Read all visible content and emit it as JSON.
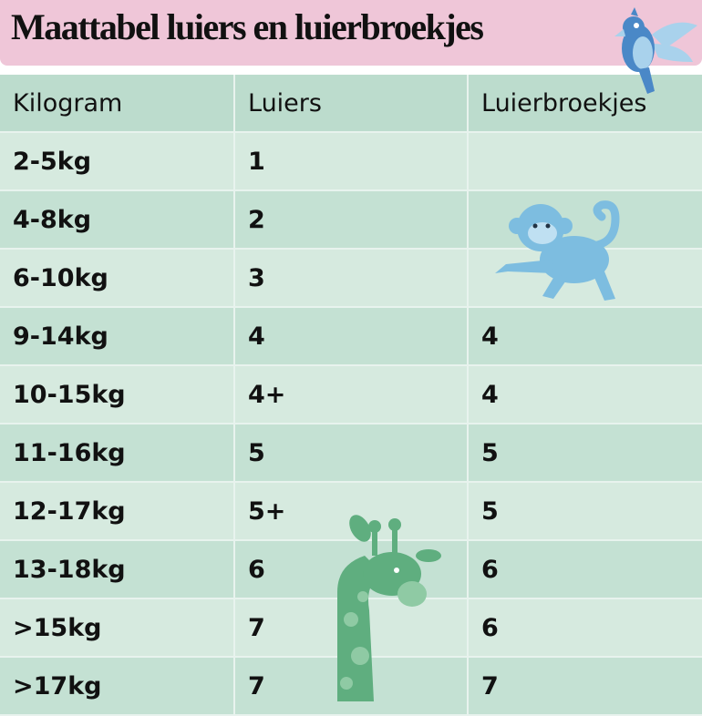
{
  "title": "Maattabel luiers en luierbroekjes",
  "headers": [
    "Kilogram",
    "Luiers",
    "Luierbroekjes"
  ],
  "rows": [
    [
      "2-5kg",
      "1",
      ""
    ],
    [
      "4-8kg",
      "2",
      ""
    ],
    [
      "6-10kg",
      "3",
      ""
    ],
    [
      "9-14kg",
      "4",
      "4"
    ],
    [
      "10-15kg",
      "4+",
      "4"
    ],
    [
      "11-16kg",
      "5",
      "5"
    ],
    [
      "12-17kg",
      "5+",
      "5"
    ],
    [
      "13-18kg",
      "6",
      "6"
    ],
    [
      ">15kg",
      "7",
      "6"
    ],
    [
      ">17kg",
      "7",
      "7"
    ]
  ],
  "colors": {
    "title_band": "#efc6d8",
    "header_row": "#bcdccd",
    "row_light": "#d6eadf",
    "row_dark": "#c4e1d3",
    "monkey": "#7dbde0",
    "giraffe": "#5fae7f",
    "parrot": "#4a88c7"
  },
  "icons": [
    "parrot-illustration",
    "monkey-illustration",
    "giraffe-illustration"
  ]
}
